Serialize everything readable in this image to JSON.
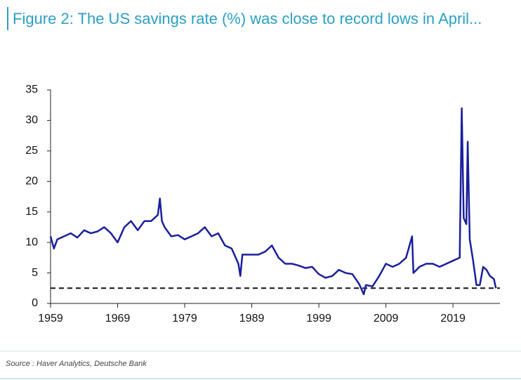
{
  "chart_data": {
    "type": "line",
    "title": "Figure 2: The US savings rate (%) was close to record lows in April...",
    "source": "Source : Haver Analytics, Deutsche Bank",
    "series": [
      {
        "name": "US savings rate",
        "color": "#1a1f9c",
        "x": [
          1959,
          1959.5,
          1960,
          1961,
          1962,
          1963,
          1964,
          1965,
          1966,
          1967,
          1968,
          1969,
          1970,
          1971,
          1972,
          1973,
          1974,
          1975,
          1975.3,
          1975.6,
          1976,
          1977,
          1978,
          1979,
          1980,
          1981,
          1982,
          1983,
          1984,
          1985,
          1986,
          1987,
          1987.3,
          1987.6,
          1988,
          1989,
          1990,
          1991,
          1992,
          1993,
          1994,
          1995,
          1996,
          1997,
          1998,
          1999,
          2000,
          2001,
          2002,
          2003,
          2004,
          2005,
          2005.7,
          2006,
          2007,
          2008,
          2009,
          2010,
          2011,
          2012,
          2012.9,
          2013.1,
          2014,
          2015,
          2016,
          2017,
          2018,
          2019,
          2020.0,
          2020.3,
          2020.6,
          2021.0,
          2021.2,
          2021.5,
          2022,
          2022.5,
          2023,
          2023.5,
          2024,
          2024.5,
          2025.1,
          2025.4
        ],
        "values": [
          11,
          9,
          10.5,
          11,
          11.5,
          10.8,
          12,
          11.5,
          11.8,
          12.5,
          11.5,
          10,
          12.5,
          13.5,
          12,
          13.5,
          13.5,
          14.5,
          17.2,
          13.5,
          12.5,
          11,
          11.2,
          10.5,
          11,
          11.5,
          12.5,
          11,
          11.5,
          9.5,
          9,
          6.5,
          4.5,
          8,
          8,
          8,
          8,
          8.5,
          9.5,
          7.5,
          6.5,
          6.5,
          6.2,
          5.8,
          6,
          4.8,
          4.2,
          4.5,
          5.5,
          5,
          4.8,
          3.2,
          1.5,
          3,
          2.8,
          4.5,
          6.5,
          6,
          6.5,
          7.5,
          11,
          5,
          6,
          6.5,
          6.5,
          6,
          6.5,
          7,
          7.5,
          32,
          14,
          13,
          26.5,
          10.5,
          7,
          3,
          3,
          6,
          5.5,
          4.5,
          4,
          2.5
        ]
      }
    ],
    "reference_line": 2.5,
    "xlim": [
      1959,
      2026
    ],
    "xticks": [
      1959,
      1969,
      1979,
      1989,
      1999,
      2009,
      2019
    ],
    "ylim": [
      0,
      35
    ],
    "yticks": [
      0,
      5,
      10,
      15,
      20,
      25,
      30,
      35
    ],
    "grid": false
  }
}
